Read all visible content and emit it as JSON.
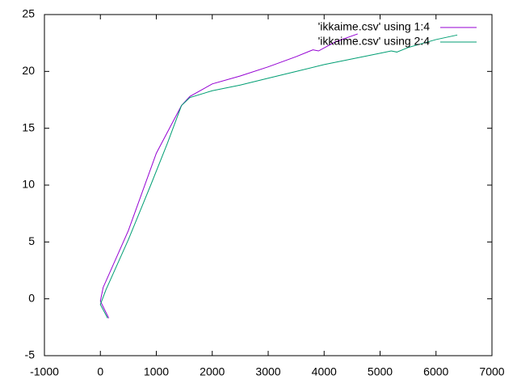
{
  "chart_data": {
    "type": "line",
    "xlim": [
      -1000,
      7000
    ],
    "xticks": [
      -1000,
      0,
      1000,
      2000,
      3000,
      4000,
      5000,
      6000,
      7000
    ],
    "ylim": [
      -5,
      25
    ],
    "yticks": [
      -5,
      0,
      5,
      10,
      15,
      20,
      25
    ],
    "legend": "top-right",
    "series": [
      {
        "name": "'ikkaime.csv' using 1:4",
        "color": "#9400d3",
        "x": [
          150,
          0,
          50,
          500,
          1000,
          1450,
          1600,
          2000,
          2500,
          3000,
          3500,
          3800,
          3900,
          4200,
          4600
        ],
        "values": [
          -1.7,
          -0.2,
          1,
          6,
          12.8,
          17,
          17.8,
          18.9,
          19.6,
          20.4,
          21.3,
          21.9,
          21.8,
          22.6,
          23.3
        ]
      },
      {
        "name": "'ikkaime.csv' using 2:4",
        "color": "#009e73",
        "x": [
          130,
          0,
          100,
          500,
          900,
          1200,
          1450,
          1600,
          2000,
          2500,
          3000,
          3500,
          4000,
          4500,
          5000,
          5200,
          5300,
          5500,
          6000,
          6380
        ],
        "values": [
          -1.7,
          -0.5,
          0.8,
          5.2,
          10,
          13.7,
          17,
          17.7,
          18.3,
          18.8,
          19.4,
          20,
          20.6,
          21.1,
          21.6,
          21.8,
          21.7,
          22.1,
          22.8,
          23.2
        ]
      }
    ]
  }
}
